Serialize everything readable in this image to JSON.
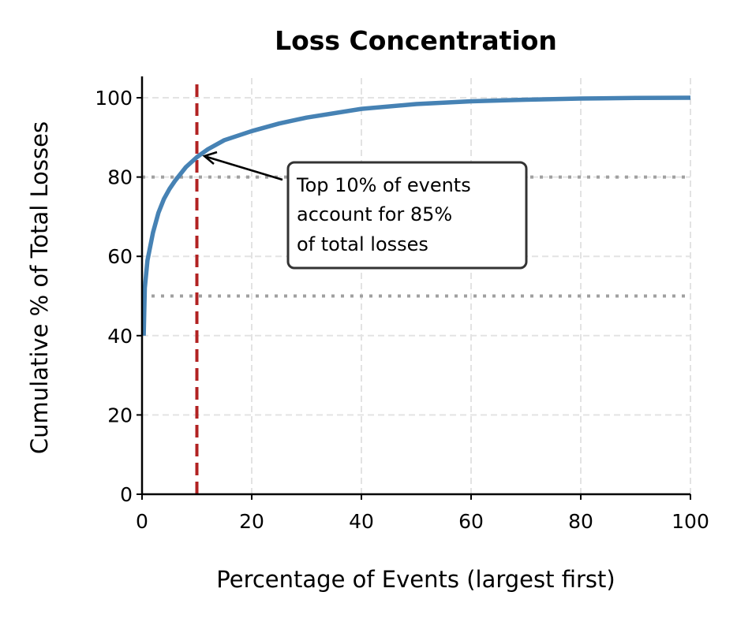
{
  "chart_data": {
    "type": "line",
    "title": "Loss Concentration",
    "xlabel": "Percentage of Events (largest first)",
    "ylabel": "Cumulative % of Total Losses",
    "xlim": [
      0,
      100
    ],
    "ylim": [
      0,
      105
    ],
    "xticks": [
      "0",
      "20",
      "40",
      "60",
      "80",
      "100"
    ],
    "yticks": [
      "0",
      "20",
      "40",
      "60",
      "80",
      "100"
    ],
    "grid": true,
    "series": [
      {
        "color": "#4682b4",
        "x": [
          0.3,
          0.5,
          1,
          2,
          3,
          4,
          5,
          6,
          8,
          10,
          12,
          15,
          20,
          25,
          30,
          40,
          50,
          60,
          70,
          80,
          90,
          100
        ],
        "y": [
          40,
          52,
          59,
          66,
          71,
          74.5,
          77,
          79,
          82.5,
          85,
          87,
          89.3,
          91.6,
          93.5,
          95,
          97.2,
          98.4,
          99.1,
          99.5,
          99.8,
          99.95,
          100
        ]
      }
    ],
    "reference_lines": [
      {
        "orientation": "vertical",
        "value": 10,
        "style": "dashed",
        "color": "#b22222"
      },
      {
        "orientation": "horizontal",
        "value": 80,
        "style": "dotted",
        "color": "#a0a0a0"
      },
      {
        "orientation": "horizontal",
        "value": 50,
        "style": "dotted",
        "color": "#a0a0a0"
      }
    ],
    "annotation": {
      "lines": [
        "Top 10% of events",
        "account for 85%",
        "of total losses"
      ],
      "point": [
        10,
        85
      ]
    }
  }
}
